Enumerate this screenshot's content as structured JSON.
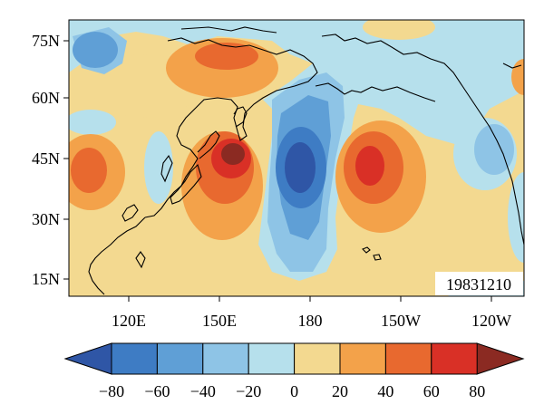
{
  "map": {
    "date_label": "19831210",
    "lat_labels": [
      "75N",
      "60N",
      "45N",
      "30N",
      "15N"
    ],
    "lon_labels": [
      "120E",
      "150E",
      "180",
      "150W",
      "120W"
    ]
  },
  "colorbar": {
    "tick_labels": [
      "−80",
      "−60",
      "−40",
      "−20",
      "0",
      "20",
      "40",
      "60",
      "80"
    ],
    "levels": [
      -80,
      -60,
      -40,
      -20,
      0,
      20,
      40,
      60,
      80
    ],
    "colors": [
      "#2f56a6",
      "#3e7cc4",
      "#5f9fd6",
      "#8ec4e6",
      "#b6e0ec",
      "#f3d990",
      "#f3a24a",
      "#e8692f",
      "#d93026",
      "#8b2a22"
    ]
  }
}
